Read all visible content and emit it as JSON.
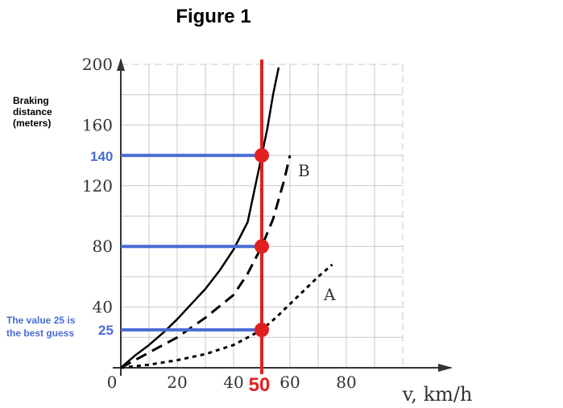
{
  "chart_data": {
    "type": "line",
    "title": "Figure 1",
    "ylabel_lines": [
      "Braking",
      "distance",
      "(meters)"
    ],
    "xlabel": "v, km/h",
    "xlim": [
      0,
      100
    ],
    "ylim": [
      0,
      200
    ],
    "x_tick_labels": [
      "0",
      "20",
      "40",
      "60",
      "80"
    ],
    "y_tick_labels": [
      "40",
      "80",
      "120",
      "160",
      "200"
    ],
    "grid": true,
    "series": [
      {
        "style": "solid",
        "x": [
          0,
          5,
          10,
          15,
          20,
          25,
          30,
          35,
          40,
          45,
          50,
          52,
          54,
          56
        ],
        "y": [
          0,
          8,
          15,
          23,
          32,
          42,
          52,
          64,
          78,
          96,
          140,
          158,
          180,
          198
        ]
      },
      {
        "name": "B",
        "style": "dashed",
        "x": [
          0,
          10,
          20,
          30,
          40,
          45,
          50,
          54,
          58,
          60
        ],
        "y": [
          0,
          10,
          20,
          33,
          48,
          62,
          80,
          98,
          124,
          140
        ]
      },
      {
        "name": "A",
        "style": "dotted",
        "x": [
          0,
          10,
          20,
          30,
          40,
          45,
          50,
          55,
          60,
          65,
          70,
          75
        ],
        "y": [
          0,
          2,
          5,
          9,
          15,
          20,
          25,
          33,
          42,
          51,
          60,
          68
        ]
      }
    ],
    "markers": {
      "x": 50,
      "x_label": "50",
      "y_values": [
        140,
        80,
        25
      ],
      "y_labels": [
        "140",
        "25"
      ]
    },
    "annotation": [
      "The value 25 is",
      "the best guess"
    ],
    "colors": {
      "marker": "#e02020",
      "guide": "#4a6cd4",
      "curve": "#000000",
      "grid": "#c8c8c8"
    }
  }
}
